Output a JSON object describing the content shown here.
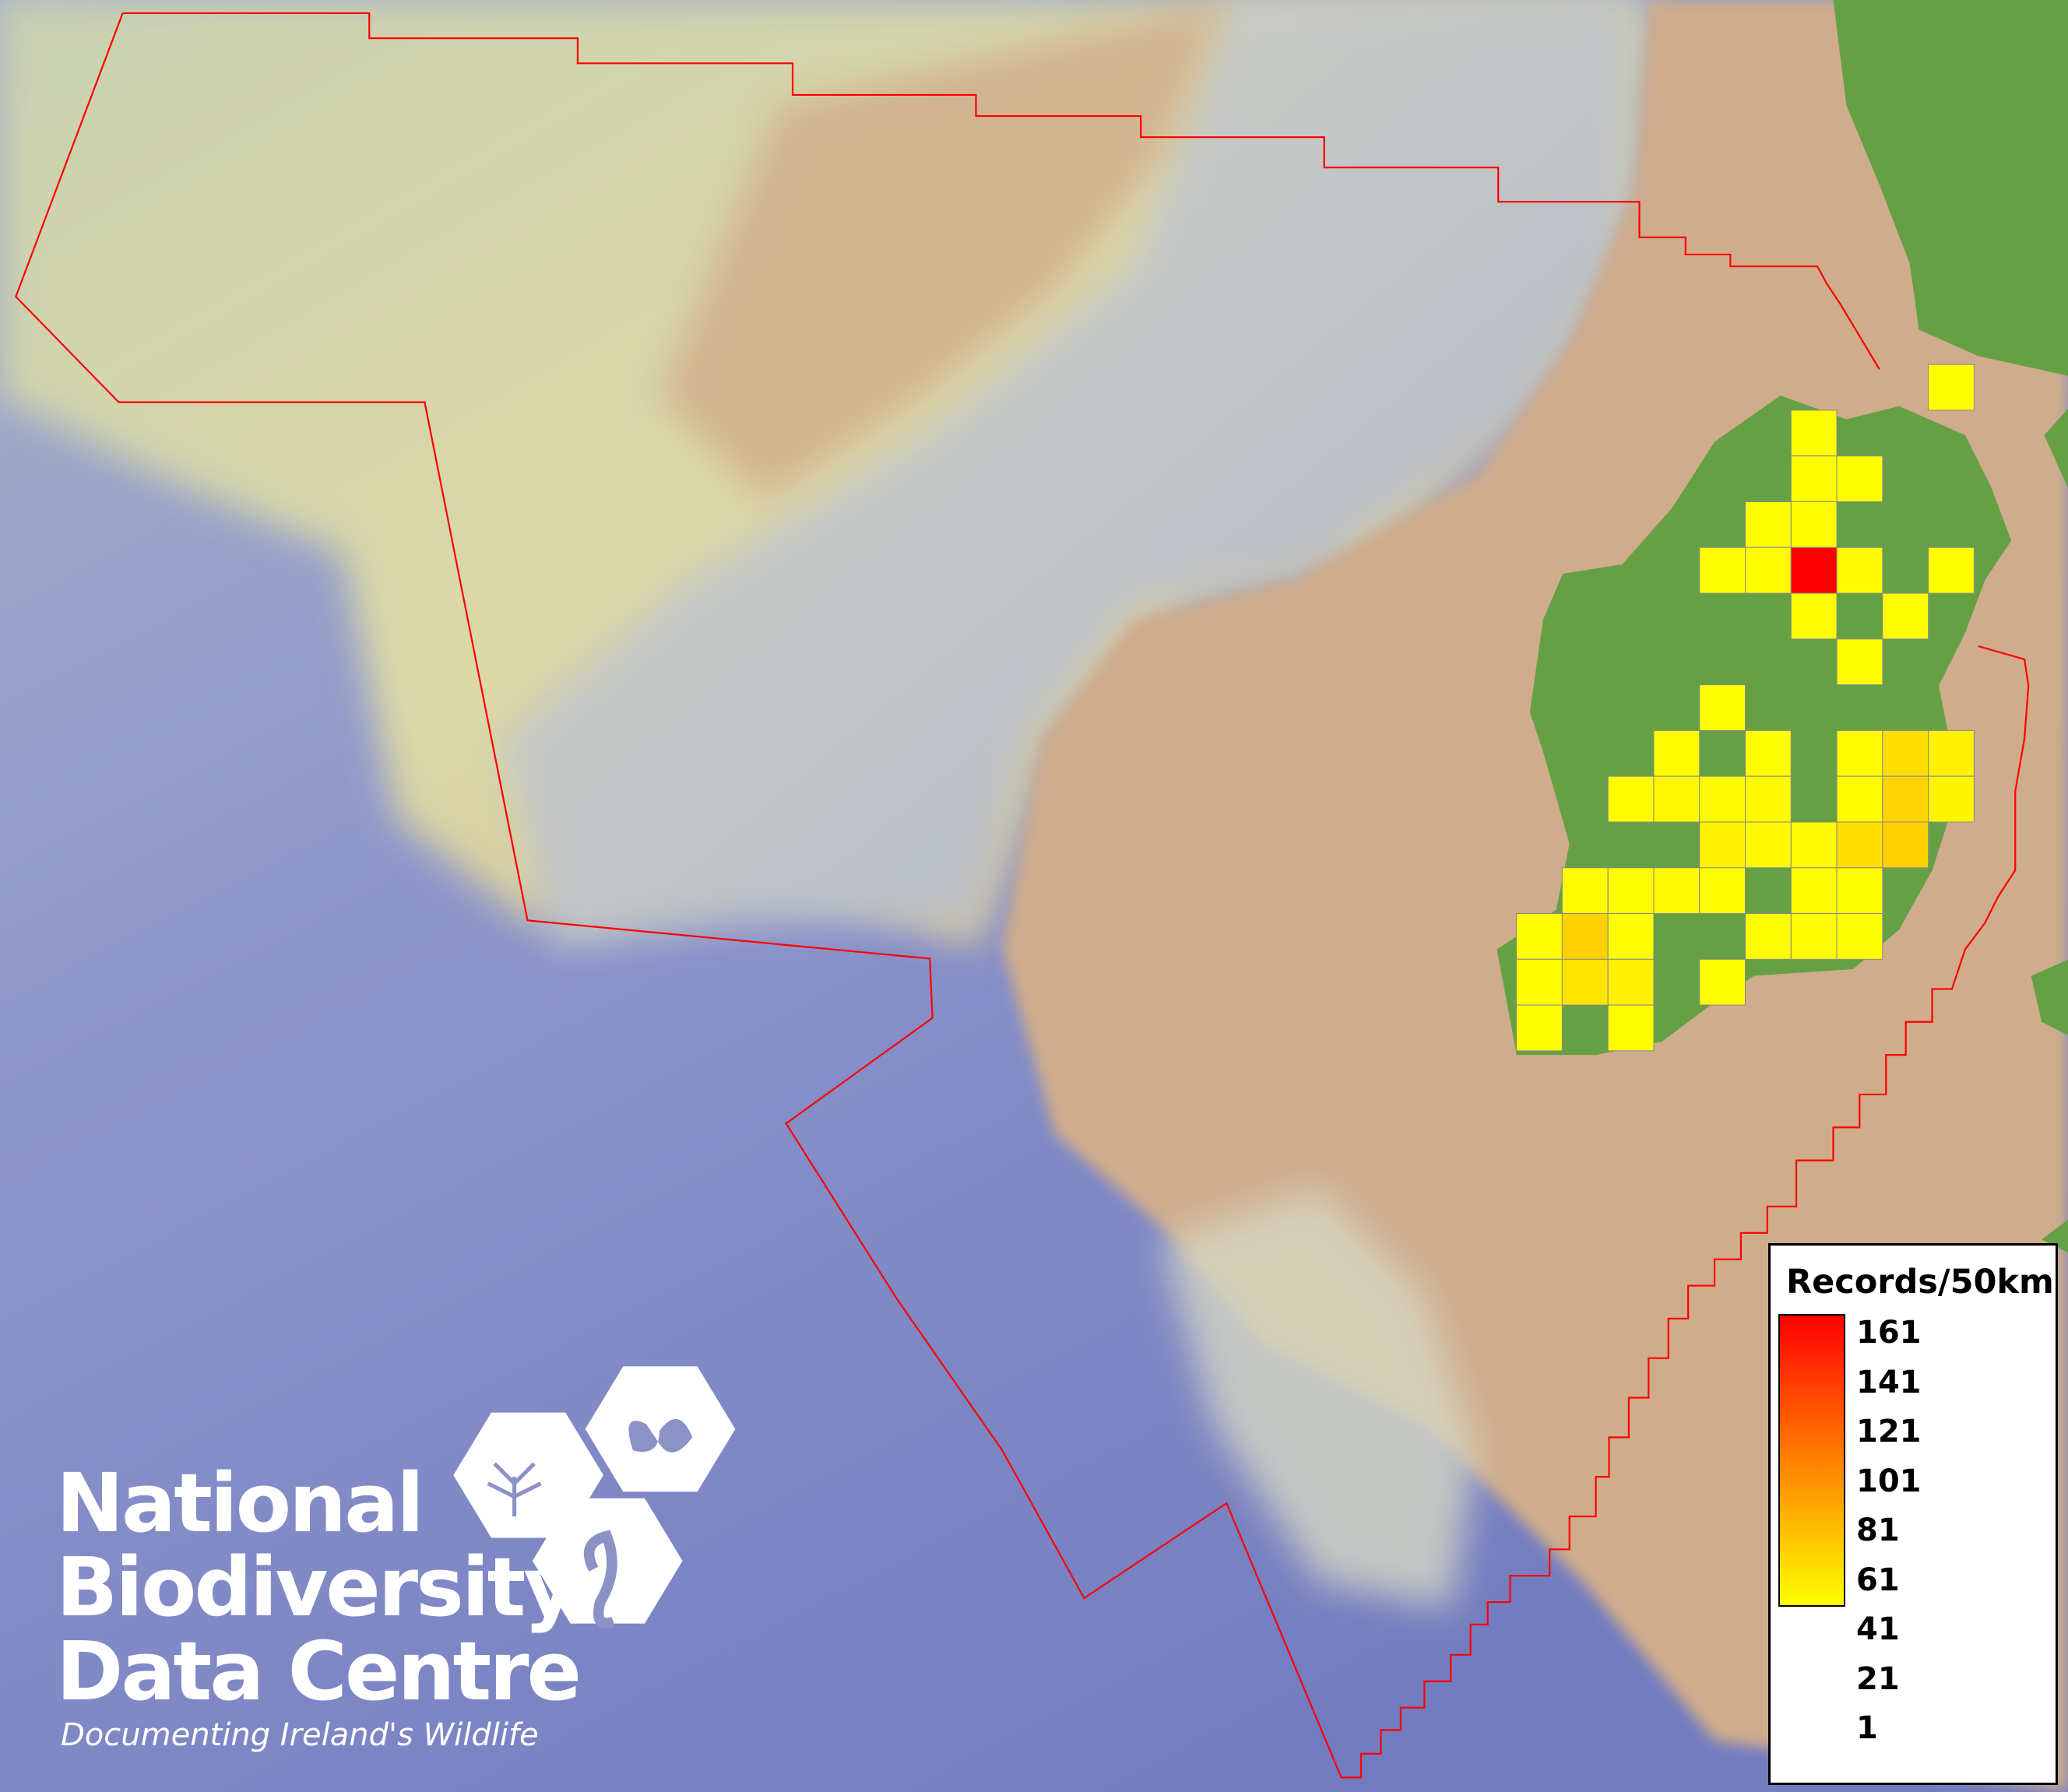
{
  "legend": {
    "title": "Records/50km",
    "ticks": [
      "161",
      "141",
      "121",
      "101",
      "81",
      "61",
      "41",
      "21",
      "1"
    ],
    "color_low": "#ffff00",
    "color_mid": "#ff8000",
    "color_high": "#ff0000",
    "min": 1,
    "max": 161
  },
  "logo": {
    "line1": "National",
    "line2": "Biodiversity",
    "line3": "Data Centre",
    "tagline": "Documenting Ireland's Wildlife"
  },
  "colors": {
    "boundary": "#ff0000",
    "land": "#66a044",
    "shelf": "#cfac8c",
    "deep_ocean": "#7d86c4",
    "cell_border": "#8a8a8a"
  },
  "grid_cells": [
    {
      "row": 0,
      "col": 9,
      "value": 2
    },
    {
      "row": 1,
      "col": 6,
      "value": 2
    },
    {
      "row": 2,
      "col": 6,
      "value": 3
    },
    {
      "row": 2,
      "col": 7,
      "value": 2
    },
    {
      "row": 3,
      "col": 5,
      "value": 2
    },
    {
      "row": 3,
      "col": 6,
      "value": 3
    },
    {
      "row": 4,
      "col": 4,
      "value": 2
    },
    {
      "row": 4,
      "col": 5,
      "value": 3
    },
    {
      "row": 4,
      "col": 6,
      "value": 161
    },
    {
      "row": 4,
      "col": 7,
      "value": 4
    },
    {
      "row": 4,
      "col": 9,
      "value": 2
    },
    {
      "row": 5,
      "col": 6,
      "value": 3
    },
    {
      "row": 5,
      "col": 8,
      "value": 2
    },
    {
      "row": 6,
      "col": 7,
      "value": 2
    },
    {
      "row": 7,
      "col": 4,
      "value": 2
    },
    {
      "row": 8,
      "col": 3,
      "value": 3
    },
    {
      "row": 8,
      "col": 5,
      "value": 2
    },
    {
      "row": 8,
      "col": 7,
      "value": 3
    },
    {
      "row": 8,
      "col": 8,
      "value": 22
    },
    {
      "row": 8,
      "col": 9,
      "value": 10
    },
    {
      "row": 9,
      "col": 2,
      "value": 3
    },
    {
      "row": 9,
      "col": 3,
      "value": 6
    },
    {
      "row": 9,
      "col": 4,
      "value": 4
    },
    {
      "row": 9,
      "col": 5,
      "value": 5
    },
    {
      "row": 9,
      "col": 7,
      "value": 3
    },
    {
      "row": 9,
      "col": 8,
      "value": 28
    },
    {
      "row": 9,
      "col": 9,
      "value": 8
    },
    {
      "row": 10,
      "col": 4,
      "value": 10
    },
    {
      "row": 10,
      "col": 5,
      "value": 5
    },
    {
      "row": 10,
      "col": 6,
      "value": 4
    },
    {
      "row": 10,
      "col": 7,
      "value": 22
    },
    {
      "row": 10,
      "col": 8,
      "value": 30
    },
    {
      "row": 11,
      "col": 1,
      "value": 3
    },
    {
      "row": 11,
      "col": 2,
      "value": 2
    },
    {
      "row": 11,
      "col": 3,
      "value": 4
    },
    {
      "row": 11,
      "col": 4,
      "value": 3
    },
    {
      "row": 11,
      "col": 6,
      "value": 3
    },
    {
      "row": 11,
      "col": 7,
      "value": 2
    },
    {
      "row": 12,
      "col": 0,
      "value": 2
    },
    {
      "row": 12,
      "col": 1,
      "value": 30
    },
    {
      "row": 12,
      "col": 2,
      "value": 3
    },
    {
      "row": 12,
      "col": 5,
      "value": 2
    },
    {
      "row": 12,
      "col": 6,
      "value": 3
    },
    {
      "row": 12,
      "col": 7,
      "value": 2
    },
    {
      "row": 13,
      "col": 0,
      "value": 3
    },
    {
      "row": 13,
      "col": 1,
      "value": 18
    },
    {
      "row": 13,
      "col": 2,
      "value": 10
    },
    {
      "row": 13,
      "col": 4,
      "value": 2
    },
    {
      "row": 14,
      "col": 0,
      "value": 2
    },
    {
      "row": 14,
      "col": 2,
      "value": 2
    }
  ]
}
